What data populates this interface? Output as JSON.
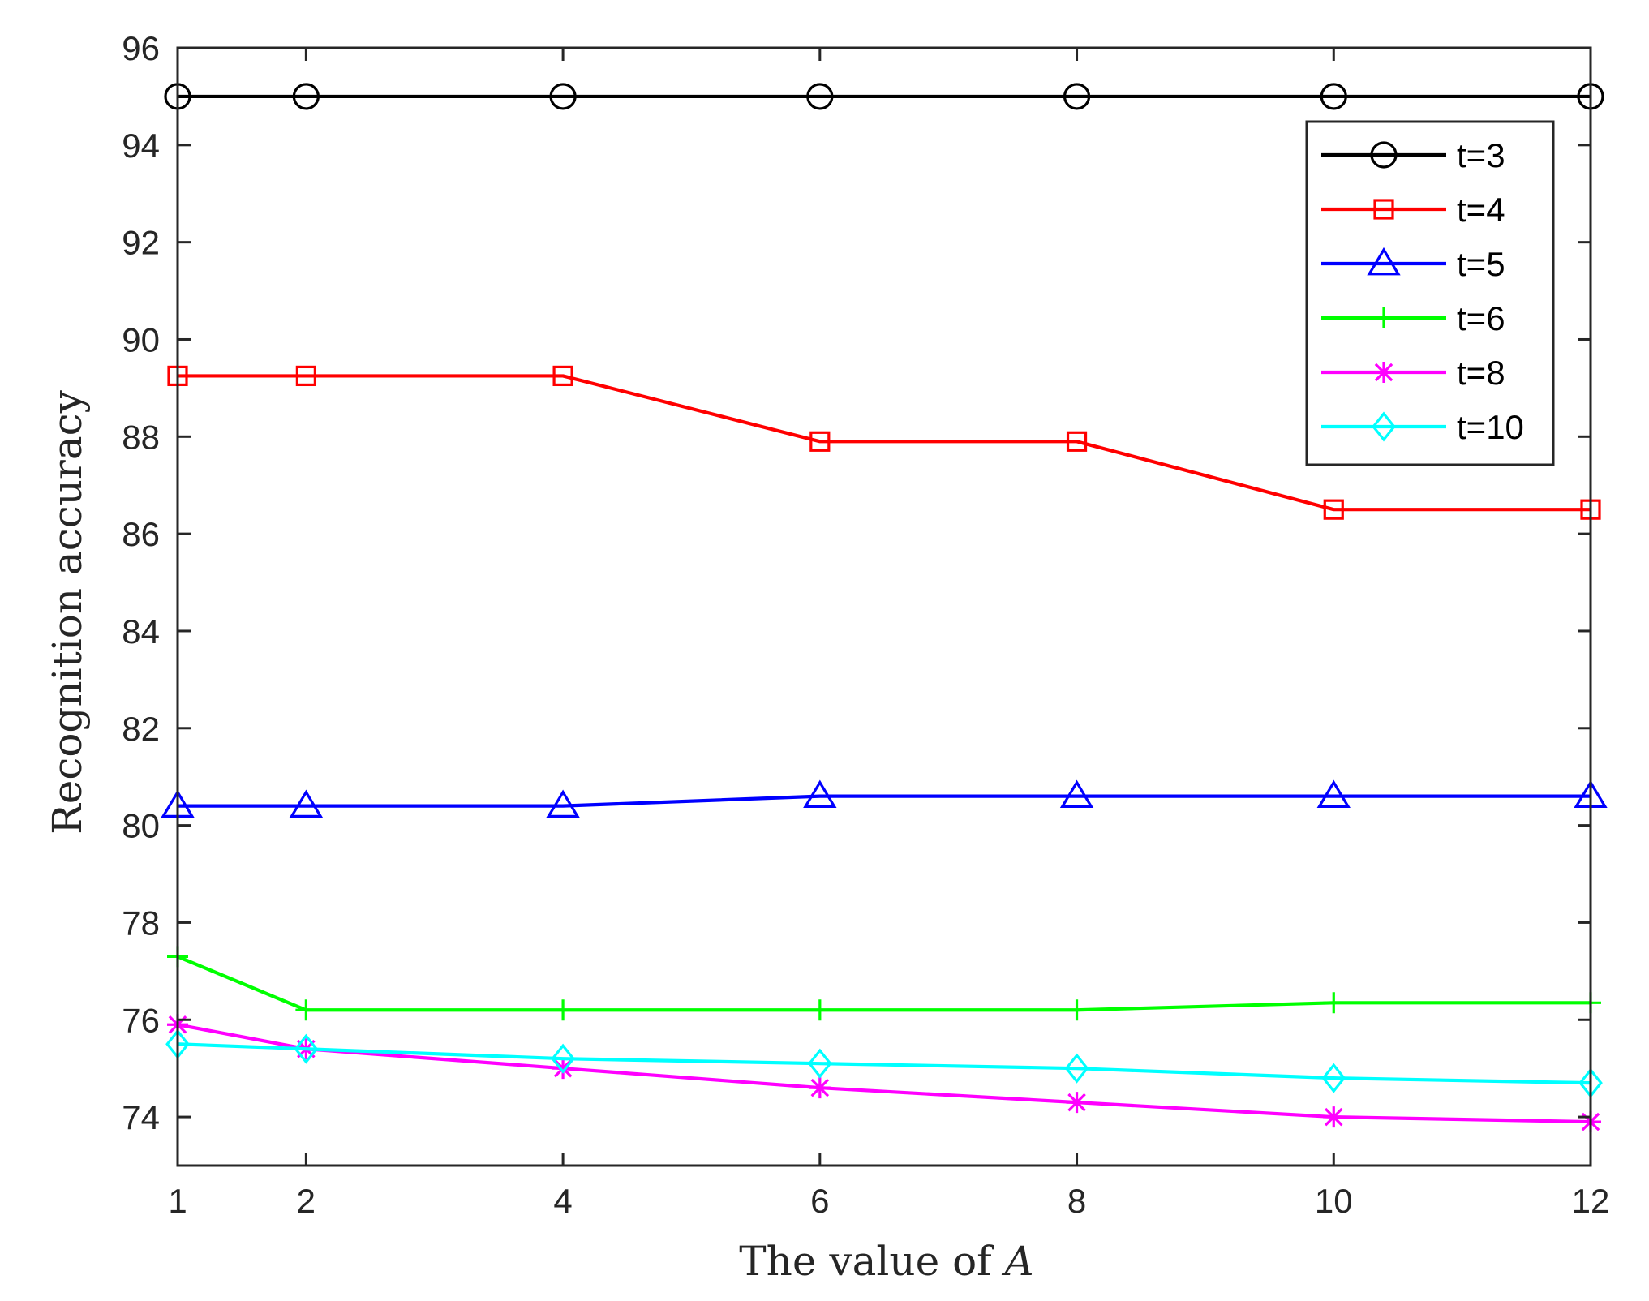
{
  "chart_data": {
    "type": "line",
    "title": "",
    "xlabel": "The value of A",
    "xlabel_parts": {
      "prefix": "The value of ",
      "variable": "A"
    },
    "ylabel": "Recognition accuracy",
    "x": [
      1,
      2,
      4,
      6,
      8,
      10,
      12
    ],
    "xticks": [
      1,
      2,
      4,
      6,
      8,
      10,
      12
    ],
    "yticks": [
      74,
      76,
      78,
      80,
      82,
      84,
      86,
      88,
      90,
      92,
      94,
      96
    ],
    "xlim": [
      1,
      12
    ],
    "ylim": [
      73,
      96
    ],
    "grid": false,
    "legend_position": "top-right",
    "series": [
      {
        "name": "t=3",
        "color": "#000000",
        "marker": "circle",
        "values": [
          95.0,
          95.0,
          95.0,
          95.0,
          95.0,
          95.0,
          95.0
        ]
      },
      {
        "name": "t=4",
        "color": "#ff0000",
        "marker": "square",
        "values": [
          89.25,
          89.25,
          89.25,
          87.9,
          87.9,
          86.5,
          86.5
        ]
      },
      {
        "name": "t=5",
        "color": "#0000ff",
        "marker": "triangle",
        "values": [
          80.4,
          80.4,
          80.4,
          80.6,
          80.6,
          80.6,
          80.6
        ]
      },
      {
        "name": "t=6",
        "color": "#00ff00",
        "marker": "plus",
        "values": [
          77.3,
          76.2,
          76.2,
          76.2,
          76.2,
          76.35,
          76.35
        ]
      },
      {
        "name": "t=8",
        "color": "#ff00ff",
        "marker": "asterisk",
        "values": [
          75.9,
          75.4,
          75.0,
          74.6,
          74.3,
          74.0,
          73.9
        ]
      },
      {
        "name": "t=10",
        "color": "#00ffff",
        "marker": "diamond",
        "values": [
          75.5,
          75.4,
          75.2,
          75.1,
          75.0,
          74.8,
          74.7
        ]
      }
    ]
  }
}
